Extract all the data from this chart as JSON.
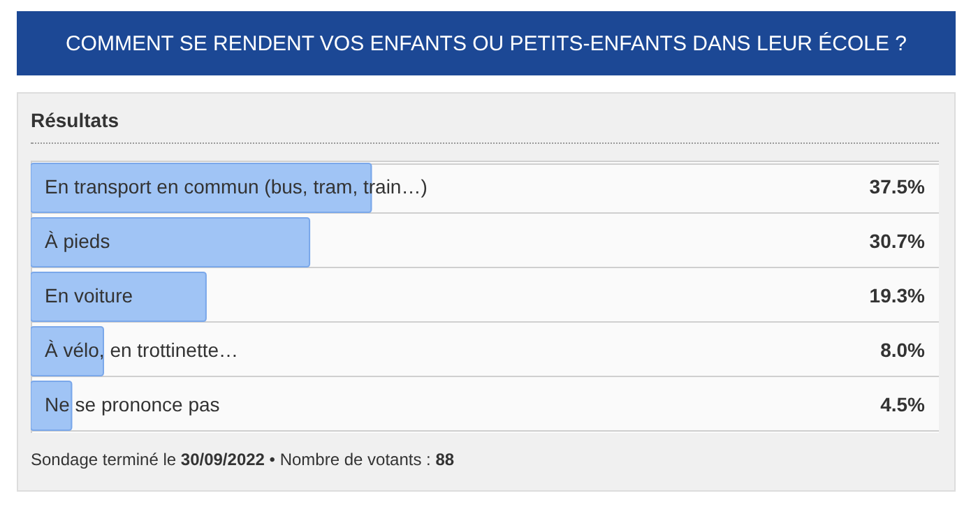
{
  "chart_data": {
    "type": "bar",
    "orientation": "horizontal",
    "title": "COMMENT SE RENDENT VOS ENFANTS OU PETITS-ENFANTS DANS LEUR ÉCOLE ?",
    "subtitle": "Résultats",
    "categories": [
      "En transport en commun (bus, tram, train…)",
      "À pieds",
      "En voiture",
      "À vélo, en trottinette…",
      "Ne se prononce pas"
    ],
    "values": [
      37.5,
      30.7,
      19.3,
      8.0,
      4.5
    ],
    "value_labels": [
      "37.5%",
      "30.7%",
      "19.3%",
      "8.0%",
      "4.5%"
    ],
    "color": "#a0c4f5",
    "xlim": [
      0,
      100
    ],
    "annotations": [
      "Sondage terminé le 30/09/2022 • Nombre de votants : 88"
    ]
  }
}
